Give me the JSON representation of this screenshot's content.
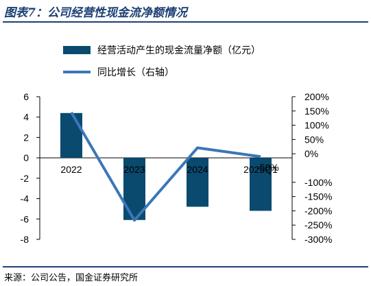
{
  "figure_title": "图表7：公司经营性现金流净额情况",
  "source": "来源：公司公告，国金证券研究所",
  "colors": {
    "bar": "#0b4a6f",
    "line": "#3b76b8",
    "title": "#1b3f73"
  },
  "chart_data": {
    "type": "bar",
    "categories": [
      "2022",
      "2023",
      "2024",
      "2025Q1"
    ],
    "series": [
      {
        "name": "经营活动产生的现金流量净额（亿元）",
        "type": "bar",
        "axis": "left",
        "values": [
          4.4,
          -6.1,
          -4.8,
          -5.2
        ]
      },
      {
        "name": "同比增长（右轴）",
        "type": "line",
        "axis": "right",
        "values": [
          1.45,
          -2.33,
          0.21,
          -0.1
        ]
      }
    ],
    "left_axis": {
      "min": -8,
      "max": 6,
      "ticks": [
        6,
        4,
        2,
        0,
        -2,
        -4,
        -6,
        -8
      ]
    },
    "right_axis": {
      "min": -3.0,
      "max": 2.0,
      "ticks": [
        "200%",
        "150%",
        "100%",
        "50%",
        "0%",
        "-100%",
        "-150%",
        "-200%",
        "-250%",
        "-300%"
      ],
      "tick_values": [
        2.0,
        1.5,
        1.0,
        0.5,
        0.0,
        -1.0,
        -1.5,
        -2.0,
        -2.5,
        -3.0
      ]
    },
    "annotations": [
      {
        "text": "-50%",
        "near_category": "2025Q1"
      }
    ],
    "legend_position": "top-left",
    "grid": false
  }
}
